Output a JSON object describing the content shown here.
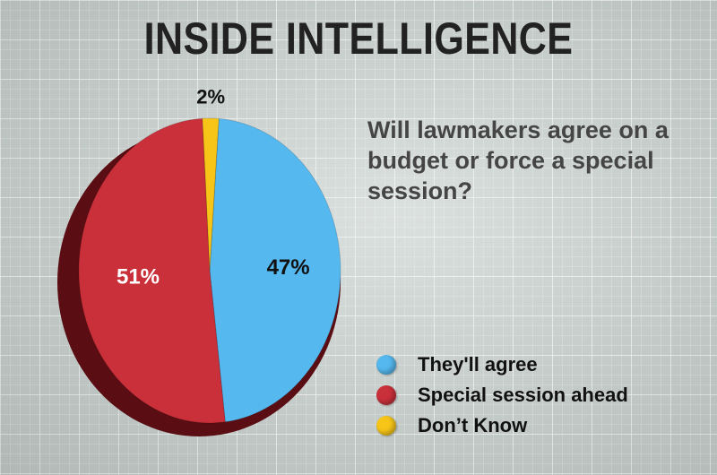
{
  "header": {
    "title": "INSIDE INTELLIGENCE",
    "question": "Will lawmakers agree on a budget or force a special session?"
  },
  "chart_data": {
    "type": "pie",
    "title": "INSIDE INTELLIGENCE",
    "subtitle": "Will lawmakers agree on a budget or force a special session?",
    "slices": [
      {
        "label": "They'll agree",
        "value": 47,
        "display": "47%",
        "color": "#55b8ee"
      },
      {
        "label": "Special session ahead",
        "value": 51,
        "display": "51%",
        "color": "#c9303a"
      },
      {
        "label": "Don’t Know",
        "value": 2,
        "display": "2%",
        "color": "#f6c518"
      }
    ],
    "legend_position": "bottom-right"
  }
}
